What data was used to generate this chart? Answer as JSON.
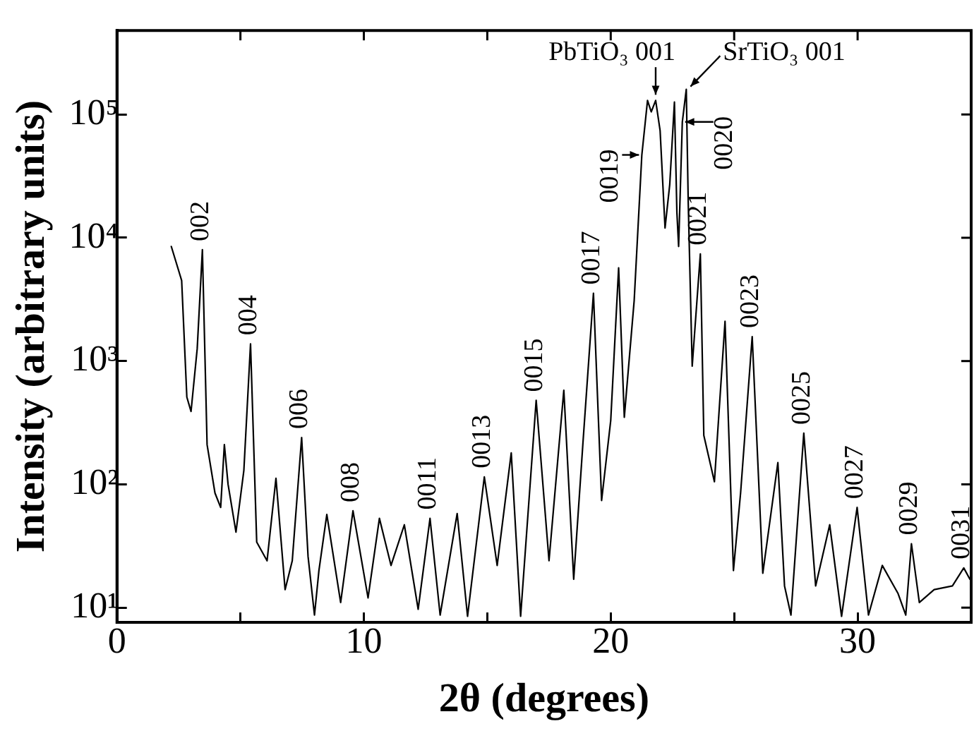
{
  "chart_data": {
    "type": "line",
    "xlabel": "2θ (degrees)",
    "ylabel": "Intensity (arbitrary units)",
    "x": [
      2.2,
      2.62,
      2.83,
      3.0,
      3.25,
      3.46,
      3.65,
      3.97,
      4.2,
      4.35,
      4.5,
      4.82,
      5.14,
      5.41,
      5.66,
      6.08,
      6.44,
      6.81,
      7.1,
      7.48,
      7.74,
      8.0,
      8.18,
      8.5,
      9.06,
      9.56,
      10.17,
      10.63,
      11.1,
      11.64,
      12.2,
      12.68,
      13.09,
      13.78,
      14.2,
      14.88,
      15.4,
      15.97,
      16.35,
      16.98,
      17.5,
      18.1,
      18.5,
      18.87,
      19.3,
      19.63,
      20.0,
      20.32,
      20.55,
      20.95,
      21.26,
      21.49,
      21.64,
      21.82,
      22.0,
      22.2,
      22.39,
      22.58,
      22.68,
      22.75,
      22.9,
      23.06,
      23.14,
      23.3,
      23.63,
      23.77,
      24.2,
      24.63,
      24.97,
      25.26,
      25.73,
      26.16,
      26.77,
      27.04,
      27.3,
      27.82,
      28.3,
      28.87,
      29.35,
      29.98,
      30.44,
      31.0,
      31.64,
      31.95,
      32.18,
      32.5,
      33.1,
      33.84,
      34.3,
      34.55
    ],
    "series": [
      {
        "color": "#000000",
        "values": [
          8500,
          4500,
          510,
          390,
          1260,
          8000,
          210,
          85,
          65,
          210,
          100,
          41,
          130,
          1380,
          34,
          24,
          112,
          14,
          24,
          240,
          26,
          8.7,
          20,
          57,
          11,
          61,
          12,
          53,
          22,
          47,
          9.7,
          53,
          8.7,
          58,
          8.5,
          115,
          22,
          180,
          8.5,
          480,
          24,
          580,
          17,
          210,
          3550,
          74,
          330,
          5700,
          350,
          3100,
          47000,
          130000,
          105000,
          130000,
          74000,
          12000,
          27000,
          126000,
          16000,
          8500,
          87000,
          160000,
          19000,
          910,
          7400,
          250,
          105,
          2100,
          20,
          85,
          1580,
          19,
          150,
          15,
          8.7,
          260,
          15,
          47,
          8.5,
          65,
          8.7,
          22,
          13,
          8.7,
          33,
          11,
          14,
          15,
          21,
          17
        ]
      }
    ],
    "log": "y",
    "xlim": [
      0,
      34.6
    ],
    "ylim": [
      7.6,
      480000
    ],
    "xticks": [
      0,
      {
        "value": 5,
        "label": null
      },
      10,
      {
        "value": 15,
        "label": null
      },
      20,
      {
        "value": 25,
        "label": null
      },
      30
    ],
    "yticks": [
      {
        "value": 10,
        "label": "10¹"
      },
      {
        "value": 100,
        "label": "10²"
      },
      {
        "value": 1000,
        "label": "10³"
      },
      {
        "value": 10000,
        "label": "10⁴"
      },
      {
        "value": 100000,
        "label": "10⁵"
      }
    ],
    "annotations": [
      {
        "text": "002",
        "x": 3.46,
        "y": 8000
      },
      {
        "text": "004",
        "x": 5.41,
        "y": 1380
      },
      {
        "text": "006",
        "x": 7.48,
        "y": 240
      },
      {
        "text": "008",
        "x": 9.56,
        "y": 61
      },
      {
        "text": "0011",
        "x": 12.68,
        "y": 53
      },
      {
        "text": "0013",
        "x": 14.88,
        "y": 115
      },
      {
        "text": "0015",
        "x": 16.98,
        "y": 480
      },
      {
        "text": "0017",
        "x": 19.3,
        "y": 3550
      },
      {
        "text": "0019",
        "x": 21.26,
        "y": 47000
      },
      {
        "text": "PbTiO₃ 001",
        "x": 21.82,
        "y": 130000
      },
      {
        "text": "SrTiO₃ 001",
        "x": 23.06,
        "y": 160000
      },
      {
        "text": "0020",
        "x": 22.9,
        "y": 87000
      },
      {
        "text": "0021",
        "x": 23.63,
        "y": 7400
      },
      {
        "text": "0023",
        "x": 25.73,
        "y": 1580
      },
      {
        "text": "0025",
        "x": 27.82,
        "y": 260
      },
      {
        "text": "0027",
        "x": 29.98,
        "y": 65
      },
      {
        "text": "0029",
        "x": 32.18,
        "y": 33
      },
      {
        "text": "0031",
        "x": 34.3,
        "y": 21
      }
    ]
  }
}
